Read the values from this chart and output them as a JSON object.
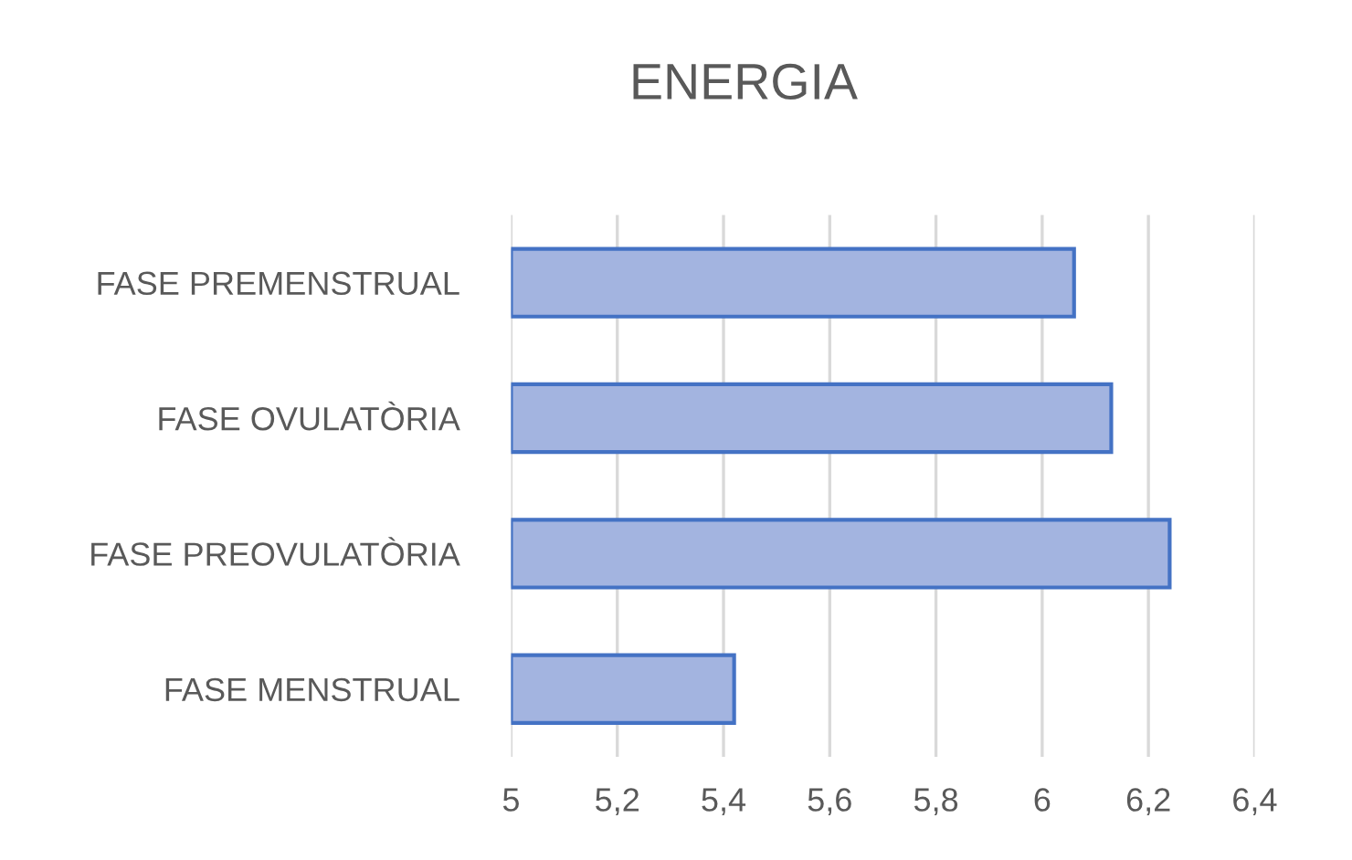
{
  "chart_data": {
    "type": "bar",
    "orientation": "horizontal",
    "title": "ENERGIA",
    "categories": [
      "FASE PREMENSTRUAL",
      "FASE OVULATÒRIA",
      "FASE PREOVULATÒRIA",
      "FASE MENSTRUAL"
    ],
    "values": [
      6.06,
      6.13,
      6.24,
      5.42
    ],
    "color": "#a3b4e0",
    "xlim": [
      5,
      6.4
    ],
    "xticks": [
      5,
      {
        "value": 5.2,
        "label": "5,2"
      },
      {
        "value": 5.4,
        "label": "5,4"
      },
      {
        "value": 5.6,
        "label": "5,6"
      },
      {
        "value": 5.8,
        "label": "5,8"
      },
      6,
      {
        "value": 6.2,
        "label": "6,2"
      },
      {
        "value": 6.4,
        "label": "6,4"
      }
    ],
    "grid": "x"
  }
}
